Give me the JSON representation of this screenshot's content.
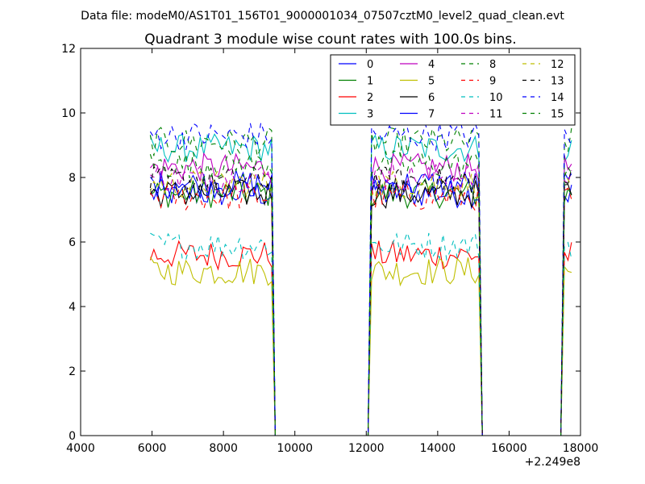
{
  "figure": {
    "suptitle": "Data file: modeM0/AS1T01_156T01_9000001034_07507cztM0_level2_quad_clean.evt",
    "title": "Quadrant 3 module wise count rates with 100.0s bins.",
    "offset_label": "+2.249e8"
  },
  "chart_data": {
    "type": "line",
    "title": "Quadrant 3 module wise count rates with 100.0s bins.",
    "xlabel": "",
    "ylabel": "",
    "x_offset": 224900000,
    "xlim": [
      4000,
      18000
    ],
    "ylim": [
      0,
      12
    ],
    "xticks": [
      4000,
      6000,
      8000,
      10000,
      12000,
      14000,
      16000,
      18000
    ],
    "yticks": [
      0,
      2,
      4,
      6,
      8,
      10,
      12
    ],
    "legend_location": "upper right",
    "legend_columns": 4,
    "bin_width": 100,
    "segments": [
      {
        "start": 5950,
        "end": 9350
      },
      {
        "start": 12150,
        "end": 15150
      },
      {
        "start": 17550,
        "end": 17750
      }
    ],
    "gap_value": 0,
    "series": [
      {
        "name": "0",
        "color": "#0000ff",
        "dash": "solid",
        "level": 7.5
      },
      {
        "name": "1",
        "color": "#008000",
        "dash": "solid",
        "level": 7.5
      },
      {
        "name": "2",
        "color": "#ff0000",
        "dash": "solid",
        "level": 5.6
      },
      {
        "name": "3",
        "color": "#00bfbf",
        "dash": "solid",
        "level": 8.9
      },
      {
        "name": "4",
        "color": "#bf00bf",
        "dash": "solid",
        "level": 8.3
      },
      {
        "name": "5",
        "color": "#bfbf00",
        "dash": "solid",
        "level": 5.1
      },
      {
        "name": "6",
        "color": "#000000",
        "dash": "solid",
        "level": 7.5
      },
      {
        "name": "7",
        "color": "#0000ff",
        "dash": "solid",
        "level": 7.8
      },
      {
        "name": "8",
        "color": "#008000",
        "dash": "dashed",
        "level": 9.1
      },
      {
        "name": "9",
        "color": "#ff0000",
        "dash": "dashed",
        "level": 7.4
      },
      {
        "name": "10",
        "color": "#00bfbf",
        "dash": "dashed",
        "level": 5.9
      },
      {
        "name": "11",
        "color": "#bf00bf",
        "dash": "dashed",
        "level": 8.0
      },
      {
        "name": "12",
        "color": "#bfbf00",
        "dash": "dashed",
        "level": 7.8
      },
      {
        "name": "13",
        "color": "#000000",
        "dash": "dashed",
        "level": 7.9
      },
      {
        "name": "14",
        "color": "#0000ff",
        "dash": "dashed",
        "level": 9.3
      },
      {
        "name": "15",
        "color": "#008000",
        "dash": "dashed",
        "level": 8.4
      }
    ]
  }
}
